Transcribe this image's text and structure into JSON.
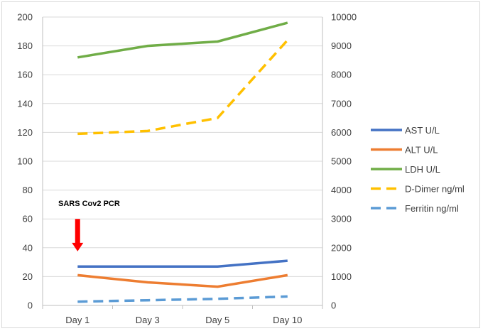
{
  "chart_data": {
    "type": "line",
    "title": "",
    "xlabel": "",
    "ylabel": "",
    "categories": [
      "Day 1",
      "Day 3",
      "Day 5",
      "Day 10"
    ],
    "y_left": {
      "ylim": [
        0,
        200
      ],
      "ticks": [
        0,
        20,
        40,
        60,
        80,
        100,
        120,
        140,
        160,
        180,
        200
      ]
    },
    "y_right": {
      "ylim": [
        0,
        10000
      ],
      "ticks": [
        0,
        1000,
        2000,
        3000,
        4000,
        5000,
        6000,
        7000,
        8000,
        9000,
        10000
      ]
    },
    "grid": "horizontal",
    "legend_position": "right",
    "series": [
      {
        "name": "AST U/L",
        "axis": "left",
        "color": "#4472C4",
        "style": "solid",
        "values": [
          27,
          27,
          27,
          31
        ]
      },
      {
        "name": "ALT U/L",
        "axis": "left",
        "color": "#ED7D31",
        "style": "solid",
        "values": [
          21,
          16,
          13,
          21
        ]
      },
      {
        "name": "LDH U/L",
        "axis": "left",
        "color": "#70AD47",
        "style": "solid",
        "values": [
          172,
          180,
          183,
          196
        ]
      },
      {
        "name": "D-Dimer ng/ml",
        "axis": "right",
        "color": "#FFC000",
        "style": "dashed",
        "values": [
          5950,
          6050,
          6500,
          9200
        ]
      },
      {
        "name": "Ferritin ng/ml",
        "axis": "right",
        "color": "#5B9BD5",
        "style": "dashed",
        "values": [
          130,
          180,
          230,
          310
        ]
      }
    ],
    "annotations": [
      {
        "text": "SARS  Cov2 PCR",
        "marker": "red-down-arrow",
        "color": "#FF0000",
        "x_category": "Day 1",
        "arrow_from": 60,
        "arrow_to": 38
      }
    ]
  }
}
